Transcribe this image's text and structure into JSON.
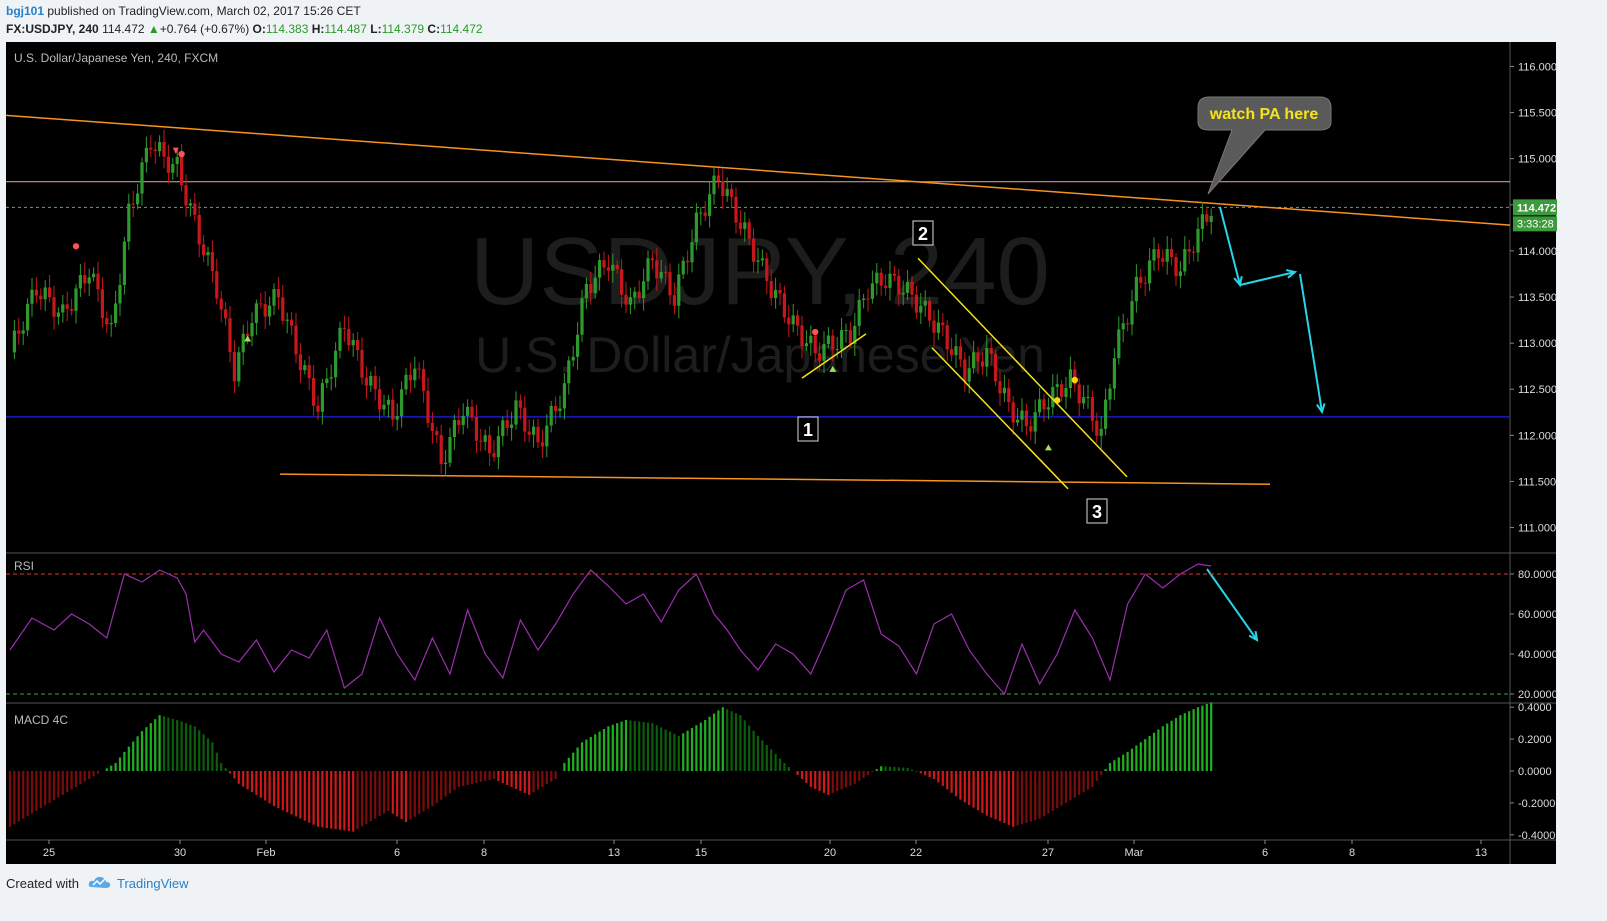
{
  "header": {
    "user": "bgj101",
    "published": "published on TradingView.com, March 02, 2017 15:26 CET",
    "symbol": "FX:USDJPY, 240",
    "last": "114.472",
    "change": "+0.764 (+0.67%)",
    "open_label": "O:",
    "open": "114.383",
    "high_label": "H:",
    "high": "114.487",
    "low_label": "L:",
    "low": "114.379",
    "close_label": "C:",
    "close": "114.472"
  },
  "footer": {
    "created": "Created with",
    "brand": "TradingView"
  },
  "colors": {
    "up": "#2e9a2e",
    "down": "#c8171c",
    "trend": "#f7931e",
    "channel": "#f5e31a",
    "support": "#1a1acb",
    "rsi": "#9b2fae",
    "arrow": "#2ad3e8",
    "bg": "#000000"
  },
  "chart_data": [
    {
      "type": "candlestick",
      "title": "U.S. Dollar/Japanese Yen, 240, FXCM",
      "watermark_symbol": "USDJPY, 240",
      "watermark_name": "U.S. Dollar/Japanese Yen",
      "x_ticks": [
        "25",
        "30",
        "Feb",
        "6",
        "8",
        "13",
        "15",
        "20",
        "22",
        "27",
        "Mar",
        "6",
        "8",
        "13"
      ],
      "y_ticks": [
        "116.000",
        "115.500",
        "115.000",
        "114.500",
        "114.000",
        "113.500",
        "113.000",
        "112.500",
        "112.000",
        "111.500",
        "111.000"
      ],
      "ylim": [
        110.8,
        116.2
      ],
      "last_price": "114.472",
      "countdown": "3:33:28",
      "waypoints": [
        [
          0,
          112.9
        ],
        [
          6,
          113.6
        ],
        [
          12,
          113.3
        ],
        [
          18,
          113.8
        ],
        [
          23,
          113.1
        ],
        [
          27,
          114.4
        ],
        [
          32,
          115.2
        ],
        [
          35,
          115.0
        ],
        [
          38,
          114.9
        ],
        [
          42,
          114.3
        ],
        [
          47,
          113.6
        ],
        [
          51,
          112.7
        ],
        [
          55,
          113.3
        ],
        [
          61,
          113.5
        ],
        [
          66,
          112.8
        ],
        [
          70,
          112.3
        ],
        [
          76,
          113.2
        ],
        [
          81,
          112.6
        ],
        [
          87,
          112.2
        ],
        [
          92,
          112.8
        ],
        [
          98,
          111.7
        ],
        [
          103,
          112.3
        ],
        [
          109,
          111.8
        ],
        [
          115,
          112.3
        ],
        [
          120,
          111.9
        ],
        [
          126,
          112.5
        ],
        [
          131,
          113.6
        ],
        [
          136,
          113.9
        ],
        [
          141,
          113.4
        ],
        [
          146,
          113.9
        ],
        [
          151,
          113.5
        ],
        [
          156,
          114.3
        ],
        [
          161,
          114.8
        ],
        [
          165,
          114.4
        ],
        [
          169,
          114.0
        ],
        [
          173,
          113.6
        ],
        [
          178,
          113.2
        ],
        [
          183,
          112.9
        ],
        [
          187,
          113.0
        ],
        [
          191,
          113.1
        ],
        [
          195,
          113.6
        ],
        [
          199,
          113.7
        ],
        [
          203,
          113.6
        ],
        [
          207,
          113.4
        ],
        [
          212,
          113.1
        ],
        [
          217,
          112.7
        ],
        [
          222,
          112.9
        ],
        [
          227,
          112.3
        ],
        [
          231,
          112.1
        ],
        [
          236,
          112.4
        ],
        [
          241,
          112.6
        ],
        [
          244,
          112.4
        ],
        [
          248,
          112.0
        ],
        [
          251,
          112.9
        ],
        [
          256,
          113.6
        ],
        [
          261,
          114.0
        ],
        [
          266,
          113.8
        ],
        [
          270,
          114.2
        ],
        [
          273,
          114.47
        ]
      ],
      "annotations": [
        "watch PA here",
        "1",
        "2",
        "3"
      ],
      "markers": [
        {
          "bar": 15,
          "price": 114.05,
          "color": "#ff5252"
        },
        {
          "bar": 39,
          "price": 115.05,
          "color": "#ff5252"
        },
        {
          "bar": 183,
          "price": 113.12,
          "color": "#ff5252"
        },
        {
          "bar": 238,
          "price": 112.38,
          "color": "#ffd500"
        },
        {
          "bar": 242,
          "price": 112.6,
          "color": "#ffd500"
        }
      ],
      "up_triangles": [
        {
          "bar": 54,
          "price": 113.05
        },
        {
          "bar": 187,
          "price": 112.72
        },
        {
          "bar": 236,
          "price": 111.87
        }
      ]
    },
    {
      "type": "line",
      "title": "RSI",
      "y_ticks": [
        "80.0000",
        "60.0000",
        "40.0000",
        "20.0000"
      ],
      "ylim": [
        16,
        90
      ],
      "levels": [
        80,
        20
      ],
      "x": [
        0,
        5,
        10,
        14,
        18,
        22,
        26,
        30,
        34,
        38,
        40,
        42,
        44,
        48,
        52,
        56,
        60,
        64,
        68,
        72,
        76,
        80,
        84,
        88,
        92,
        96,
        100,
        104,
        108,
        112,
        116,
        120,
        124,
        128,
        132,
        136,
        140,
        144,
        148,
        152,
        156,
        160,
        163,
        166,
        170,
        174,
        178,
        182,
        186,
        190,
        194,
        198,
        202,
        206,
        210,
        214,
        218,
        222,
        226,
        230,
        234,
        238,
        242,
        246,
        250,
        254,
        258,
        262,
        266,
        270,
        273
      ],
      "values": [
        42,
        58,
        52,
        60,
        55,
        48,
        80,
        76,
        82,
        78,
        70,
        46,
        52,
        40,
        36,
        47,
        31,
        42,
        38,
        52,
        23,
        30,
        58,
        40,
        27,
        48,
        30,
        62,
        40,
        28,
        57,
        42,
        55,
        70,
        82,
        74,
        65,
        70,
        56,
        72,
        80,
        60,
        52,
        42,
        32,
        45,
        40,
        30,
        50,
        72,
        77,
        50,
        44,
        30,
        55,
        60,
        42,
        30,
        20,
        45,
        25,
        40,
        62,
        48,
        27,
        65,
        80,
        73,
        80,
        85,
        84
      ]
    },
    {
      "type": "bar",
      "title": "MACD 4C",
      "y_ticks": [
        "0.4000",
        "0.2000",
        "0.0000",
        "-0.2000",
        "-0.4000"
      ],
      "ylim": [
        -0.42,
        0.42
      ],
      "x": [
        0,
        6,
        12,
        18,
        24,
        26,
        30,
        34,
        38,
        42,
        46,
        48,
        52,
        60,
        70,
        78,
        86,
        90,
        96,
        102,
        110,
        118,
        124,
        126,
        130,
        136,
        140,
        146,
        152,
        158,
        162,
        166,
        170,
        176,
        182,
        186,
        192,
        198,
        204,
        210,
        216,
        222,
        228,
        234,
        240,
        246,
        250,
        254,
        258,
        262,
        266,
        270,
        273
      ],
      "values": [
        -0.35,
        -0.25,
        -0.15,
        -0.05,
        0.05,
        0.12,
        0.25,
        0.35,
        0.32,
        0.28,
        0.18,
        0.05,
        -0.08,
        -0.22,
        -0.35,
        -0.38,
        -0.25,
        -0.32,
        -0.22,
        -0.1,
        -0.05,
        -0.15,
        -0.05,
        0.05,
        0.18,
        0.28,
        0.32,
        0.3,
        0.22,
        0.32,
        0.4,
        0.35,
        0.22,
        0.05,
        -0.1,
        -0.15,
        -0.08,
        0.03,
        0.02,
        -0.05,
        -0.18,
        -0.28,
        -0.35,
        -0.3,
        -0.2,
        -0.1,
        0.05,
        0.12,
        0.2,
        0.28,
        0.35,
        0.4,
        0.43
      ]
    }
  ]
}
